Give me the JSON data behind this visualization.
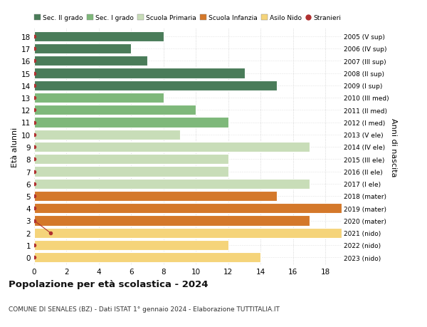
{
  "ages": [
    18,
    17,
    16,
    15,
    14,
    13,
    12,
    11,
    10,
    9,
    8,
    7,
    6,
    5,
    4,
    3,
    2,
    1,
    0
  ],
  "years": [
    "2005 (V sup)",
    "2006 (IV sup)",
    "2007 (III sup)",
    "2008 (II sup)",
    "2009 (I sup)",
    "2010 (III med)",
    "2011 (II med)",
    "2012 (I med)",
    "2013 (V ele)",
    "2014 (IV ele)",
    "2015 (III ele)",
    "2016 (II ele)",
    "2017 (I ele)",
    "2018 (mater)",
    "2019 (mater)",
    "2020 (mater)",
    "2021 (nido)",
    "2022 (nido)",
    "2023 (nido)"
  ],
  "values": [
    8,
    6,
    7,
    13,
    15,
    8,
    10,
    12,
    9,
    17,
    12,
    12,
    17,
    15,
    19,
    17,
    19,
    12,
    14
  ],
  "stranieri": [
    0,
    0,
    0,
    0,
    0,
    0,
    0,
    0,
    0,
    0,
    0,
    0,
    0,
    0,
    0,
    0,
    1,
    0,
    0
  ],
  "colors": {
    "sec2": "#4a7c59",
    "sec1": "#7eb87a",
    "primaria": "#c8ddb8",
    "infanzia": "#d4782a",
    "nido": "#f5d47a",
    "stranieri": "#b03030"
  },
  "category_colors": [
    "sec2",
    "sec2",
    "sec2",
    "sec2",
    "sec2",
    "sec1",
    "sec1",
    "sec1",
    "primaria",
    "primaria",
    "primaria",
    "primaria",
    "primaria",
    "infanzia",
    "infanzia",
    "infanzia",
    "nido",
    "nido",
    "nido"
  ],
  "legend_labels": [
    "Sec. II grado",
    "Sec. I grado",
    "Scuola Primaria",
    "Scuola Infanzia",
    "Asilo Nido",
    "Stranieri"
  ],
  "legend_colors": [
    "#4a7c59",
    "#7eb87a",
    "#c8ddb8",
    "#d4782a",
    "#f5d47a",
    "#b03030"
  ],
  "title": "Popolazione per età scolastica - 2024",
  "subtitle": "COMUNE DI SENALES (BZ) - Dati ISTAT 1° gennaio 2024 - Elaborazione TUTTITALIA.IT",
  "ylabel_left": "Età alunni",
  "ylabel_right": "Anni di nascita",
  "xlim": [
    0,
    19
  ],
  "xticks": [
    0,
    2,
    4,
    6,
    8,
    10,
    12,
    14,
    16,
    18
  ],
  "background_color": "#ffffff",
  "grid_color": "#cccccc",
  "bar_height": 0.82
}
